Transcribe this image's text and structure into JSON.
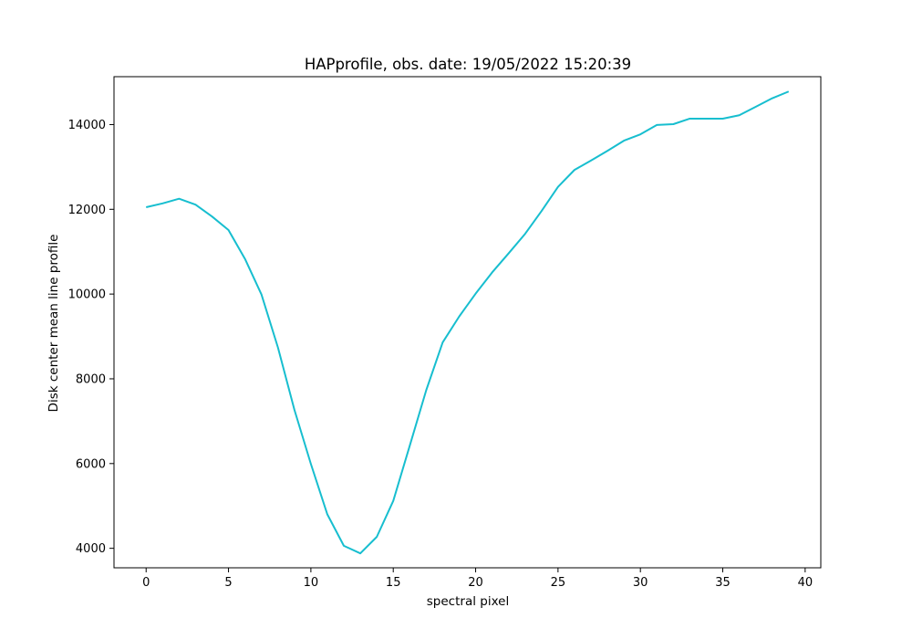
{
  "chart_data": {
    "type": "line",
    "title": "HAPprofile, obs. date: 19/05/2022 15:20:39",
    "xlabel": "spectral pixel",
    "ylabel": "Disk center mean line profile",
    "xlim": [
      -1.95,
      40.95
    ],
    "ylim": [
      3540,
      15130
    ],
    "xticks": [
      0,
      5,
      10,
      15,
      20,
      25,
      30,
      35,
      40
    ],
    "yticks": [
      4000,
      6000,
      8000,
      10000,
      12000,
      14000
    ],
    "grid": false,
    "color": "#17becf",
    "series": [
      {
        "x": [
          0,
          1,
          2,
          3,
          4,
          5,
          6,
          7,
          8,
          9,
          10,
          11,
          12,
          13,
          14,
          15,
          16,
          17,
          18,
          19,
          20,
          21,
          22,
          23,
          24,
          25,
          26,
          27,
          28,
          29,
          30,
          31,
          32,
          33,
          34,
          35,
          36,
          37,
          38,
          39
        ],
        "values": [
          12050,
          12140,
          12250,
          12110,
          11830,
          11510,
          10830,
          9990,
          8740,
          7270,
          5990,
          4800,
          4060,
          3880,
          4270,
          5120,
          6420,
          7730,
          8860,
          9470,
          10010,
          10510,
          10960,
          11420,
          11960,
          12530,
          12930,
          13150,
          13380,
          13620,
          13770,
          13990,
          14010,
          14140,
          14140,
          14140,
          14220,
          14420,
          14620,
          14780
        ]
      }
    ]
  }
}
